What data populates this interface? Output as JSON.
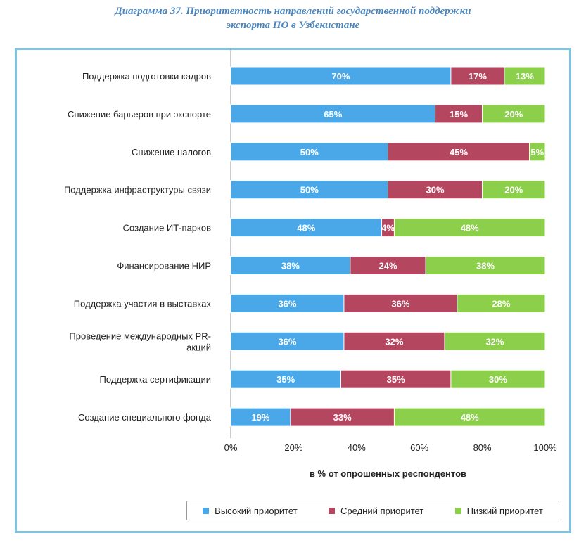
{
  "title": {
    "line1": "Диаграмма 37. Приоритетность направлений государственной поддержки",
    "line2": "экспорта ПО в Узбекистане"
  },
  "chart_data": {
    "type": "bar",
    "orientation": "horizontal",
    "stacked": "percent",
    "categories": [
      "Поддержка подготовки кадров",
      "Снижение барьеров при экспорте",
      "Снижение налогов",
      "Поддержка инфраструктуры связи",
      "Создание ИТ-парков",
      "Финансирование НИР",
      "Поддержка участия в выставках",
      "Проведение международных PR-акций",
      "Поддержка сертификации",
      "Создание специального фонда"
    ],
    "category_lines": [
      [
        "Поддержка подготовки кадров"
      ],
      [
        "Снижение барьеров при экспорте"
      ],
      [
        "Снижение налогов"
      ],
      [
        "Поддержка инфраструктуры связи"
      ],
      [
        "Создание ИТ-парков"
      ],
      [
        "Финансирование НИР"
      ],
      [
        "Поддержка участия в выставках"
      ],
      [
        "Проведение международных PR-",
        "акций"
      ],
      [
        "Поддержка сертификации"
      ],
      [
        "Создание специального фонда"
      ]
    ],
    "series": [
      {
        "name": "Высокий приоритет",
        "color": "#4aa8e8",
        "values": [
          70,
          65,
          50,
          50,
          48,
          38,
          36,
          36,
          35,
          19
        ]
      },
      {
        "name": "Средний приоритет",
        "color": "#b5465f",
        "values": [
          17,
          15,
          45,
          30,
          4,
          24,
          36,
          32,
          35,
          33
        ]
      },
      {
        "name": "Низкий приоритет",
        "color": "#8ccf4b",
        "values": [
          13,
          20,
          5,
          20,
          48,
          38,
          28,
          32,
          30,
          48
        ]
      }
    ],
    "xlim": [
      0,
      100
    ],
    "xticks": [
      "0%",
      "20%",
      "40%",
      "60%",
      "80%",
      "100%"
    ],
    "xlabel": "в % от опрошенных респондентов",
    "legend_position": "bottom",
    "grid": false
  }
}
